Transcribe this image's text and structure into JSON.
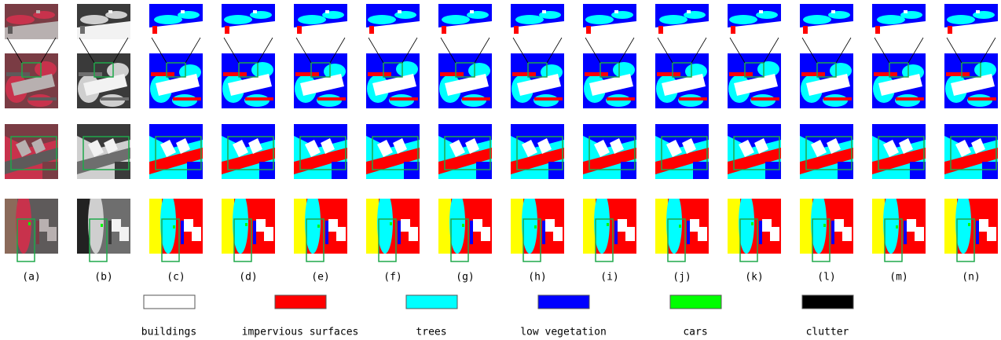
{
  "figure": {
    "columns": [
      "(a)",
      "(b)",
      "(c)",
      "(d)",
      "(e)",
      "(f)",
      "(g)",
      "(h)",
      "(i)",
      "(j)",
      "(k)",
      "(l)",
      "(m)",
      "(n)"
    ],
    "legend": [
      {
        "label": "buildings",
        "color": "#ffffff"
      },
      {
        "label": "impervious surfaces",
        "color": "#ff0000"
      },
      {
        "label": "trees",
        "color": "#00ffff"
      },
      {
        "label": "low vegetation",
        "color": "#0000ff"
      },
      {
        "label": "cars",
        "color": "#00ff00"
      },
      {
        "label": "clutter",
        "color": "#000000"
      }
    ]
  }
}
